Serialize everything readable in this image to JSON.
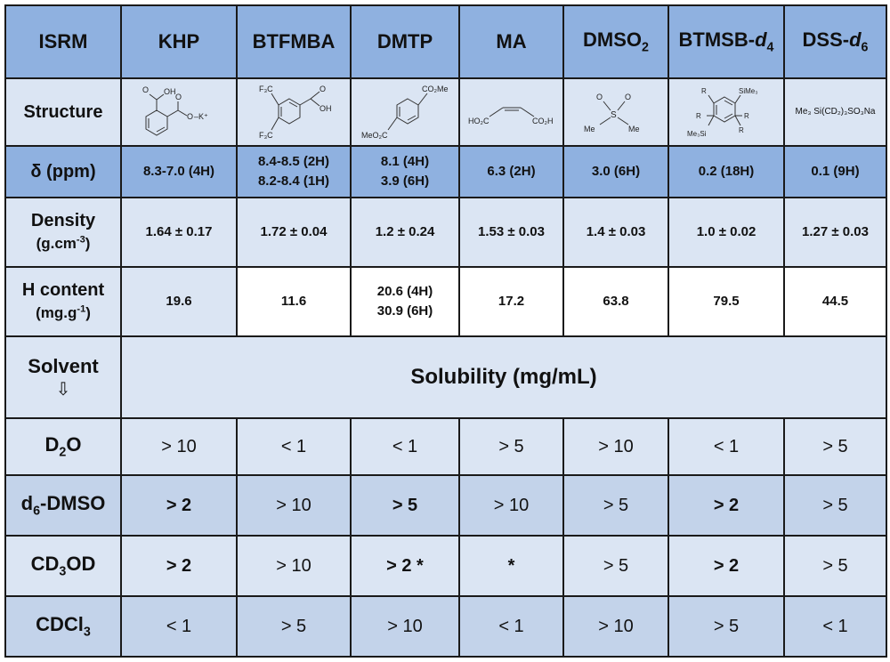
{
  "header": {
    "corner": "ISRM",
    "compounds": [
      {
        "name": "KHP"
      },
      {
        "name": "BTFMBA"
      },
      {
        "name": "DMTP"
      },
      {
        "name": "MA"
      },
      {
        "name": "DMSO",
        "sub": "2"
      },
      {
        "name": "BTMSB-",
        "italic": "d",
        "sub": "4"
      },
      {
        "name": "DSS-",
        "italic": "d",
        "sub": "6"
      }
    ]
  },
  "rows": {
    "structure": {
      "label": "Structure",
      "khp": {
        "oh": "OH",
        "ok": "O",
        "k": "–K⁺"
      },
      "btfmba": {
        "cf3_top": "F₃C",
        "cf3_bot": "F₃C",
        "oh": "OH",
        "o": "O"
      },
      "dmtp": {
        "top": "CO₂Me",
        "bot": "MeO₂C"
      },
      "ma": {
        "left": "HO₂C",
        "right": "CO₂H"
      },
      "dmso2": {
        "o1": "O",
        "o2": "O",
        "s": "S",
        "me1": "Me",
        "me2": "Me"
      },
      "btmsb": {
        "r": "R",
        "sime3_top": "SiMe₃",
        "sime3_bot": "Me₃Si"
      },
      "dss": "Me₃ Si(CD₂)₃SO₃Na"
    },
    "shift": {
      "label": "δ (ppm)",
      "values": [
        "8.3-7.0 (4H)",
        "8.4-8.5 (2H)\n8.2-8.4 (1H)",
        "8.1 (4H)\n3.9 (6H)",
        "6.3 (2H)",
        "3.0 (6H)",
        "0.2 (18H)",
        "0.1 (9H)"
      ]
    },
    "density": {
      "label_line1": "Density",
      "label_line2_pre": "(g.cm",
      "label_line2_sup": "-3",
      "label_line2_post": ")",
      "values": [
        "1.64 ± 0.17",
        "1.72 ± 0.04",
        "1.2 ± 0.24",
        "1.53 ± 0.03",
        "1.4 ± 0.03",
        "1.0 ± 0.02",
        "1.27 ± 0.03"
      ]
    },
    "hcontent": {
      "label_line1": "H content",
      "label_line2_pre": "(mg.g",
      "label_line2_sup": "-1",
      "label_line2_post": ")",
      "values": [
        "19.6",
        "11.6",
        "20.6 (4H)\n30.9 (6H)",
        "17.2",
        "63.8",
        "79.5",
        "44.5"
      ]
    },
    "solvent_header": {
      "label": "Solvent",
      "arrow": "⇩",
      "title": "Solubility (mg/mL)"
    }
  },
  "solvents": [
    {
      "pre": "D",
      "sub": "2",
      "post": "O",
      "cells": [
        {
          "text": "> 10",
          "style": "green"
        },
        {
          "text": "< 1",
          "style": "red"
        },
        {
          "text": "< 1",
          "style": "red"
        },
        {
          "text": "> 5",
          "style": "green"
        },
        {
          "text": "> 10",
          "style": "green"
        },
        {
          "text": "< 1",
          "style": "red"
        },
        {
          "text": "> 5",
          "style": "green"
        }
      ]
    },
    {
      "pre": "d",
      "sub": "6",
      "post": "-DMSO",
      "cells": [
        {
          "text": "> 2",
          "style": "orange"
        },
        {
          "text": "> 10",
          "style": "green"
        },
        {
          "text": "> 5",
          "style": "greenb"
        },
        {
          "text": "> 10",
          "style": "green"
        },
        {
          "text": "> 5",
          "style": "green"
        },
        {
          "text": "> 2",
          "style": "orange"
        },
        {
          "text": "> 5",
          "style": "green"
        }
      ]
    },
    {
      "pre": "CD",
      "sub": "3",
      "post": "OD",
      "cells": [
        {
          "text": "> 2",
          "style": "orange"
        },
        {
          "text": "> 10",
          "style": "green"
        },
        {
          "text": "> 2 *",
          "style": "greenb"
        },
        {
          "text": "*",
          "style": "redb"
        },
        {
          "text": "> 5",
          "style": "green"
        },
        {
          "text": "> 2",
          "style": "orange"
        },
        {
          "text": "> 5",
          "style": "green"
        }
      ]
    },
    {
      "pre": "CDCl",
      "sub": "3",
      "post": "",
      "cells": [
        {
          "text": "< 1",
          "style": "red"
        },
        {
          "text": "> 5",
          "style": "green"
        },
        {
          "text": "> 10",
          "style": "green"
        },
        {
          "text": "< 1",
          "style": "red"
        },
        {
          "text": "> 10",
          "style": "green"
        },
        {
          "text": "> 5",
          "style": "green"
        },
        {
          "text": "< 1",
          "style": "red"
        }
      ]
    }
  ],
  "colors": {
    "header_blue": "#8fb1e0",
    "light_blue": "#dbe5f3",
    "mid_blue": "#c3d3ea",
    "green": "#23a85a",
    "red": "#e8262b",
    "orange": "#e58a2f"
  }
}
